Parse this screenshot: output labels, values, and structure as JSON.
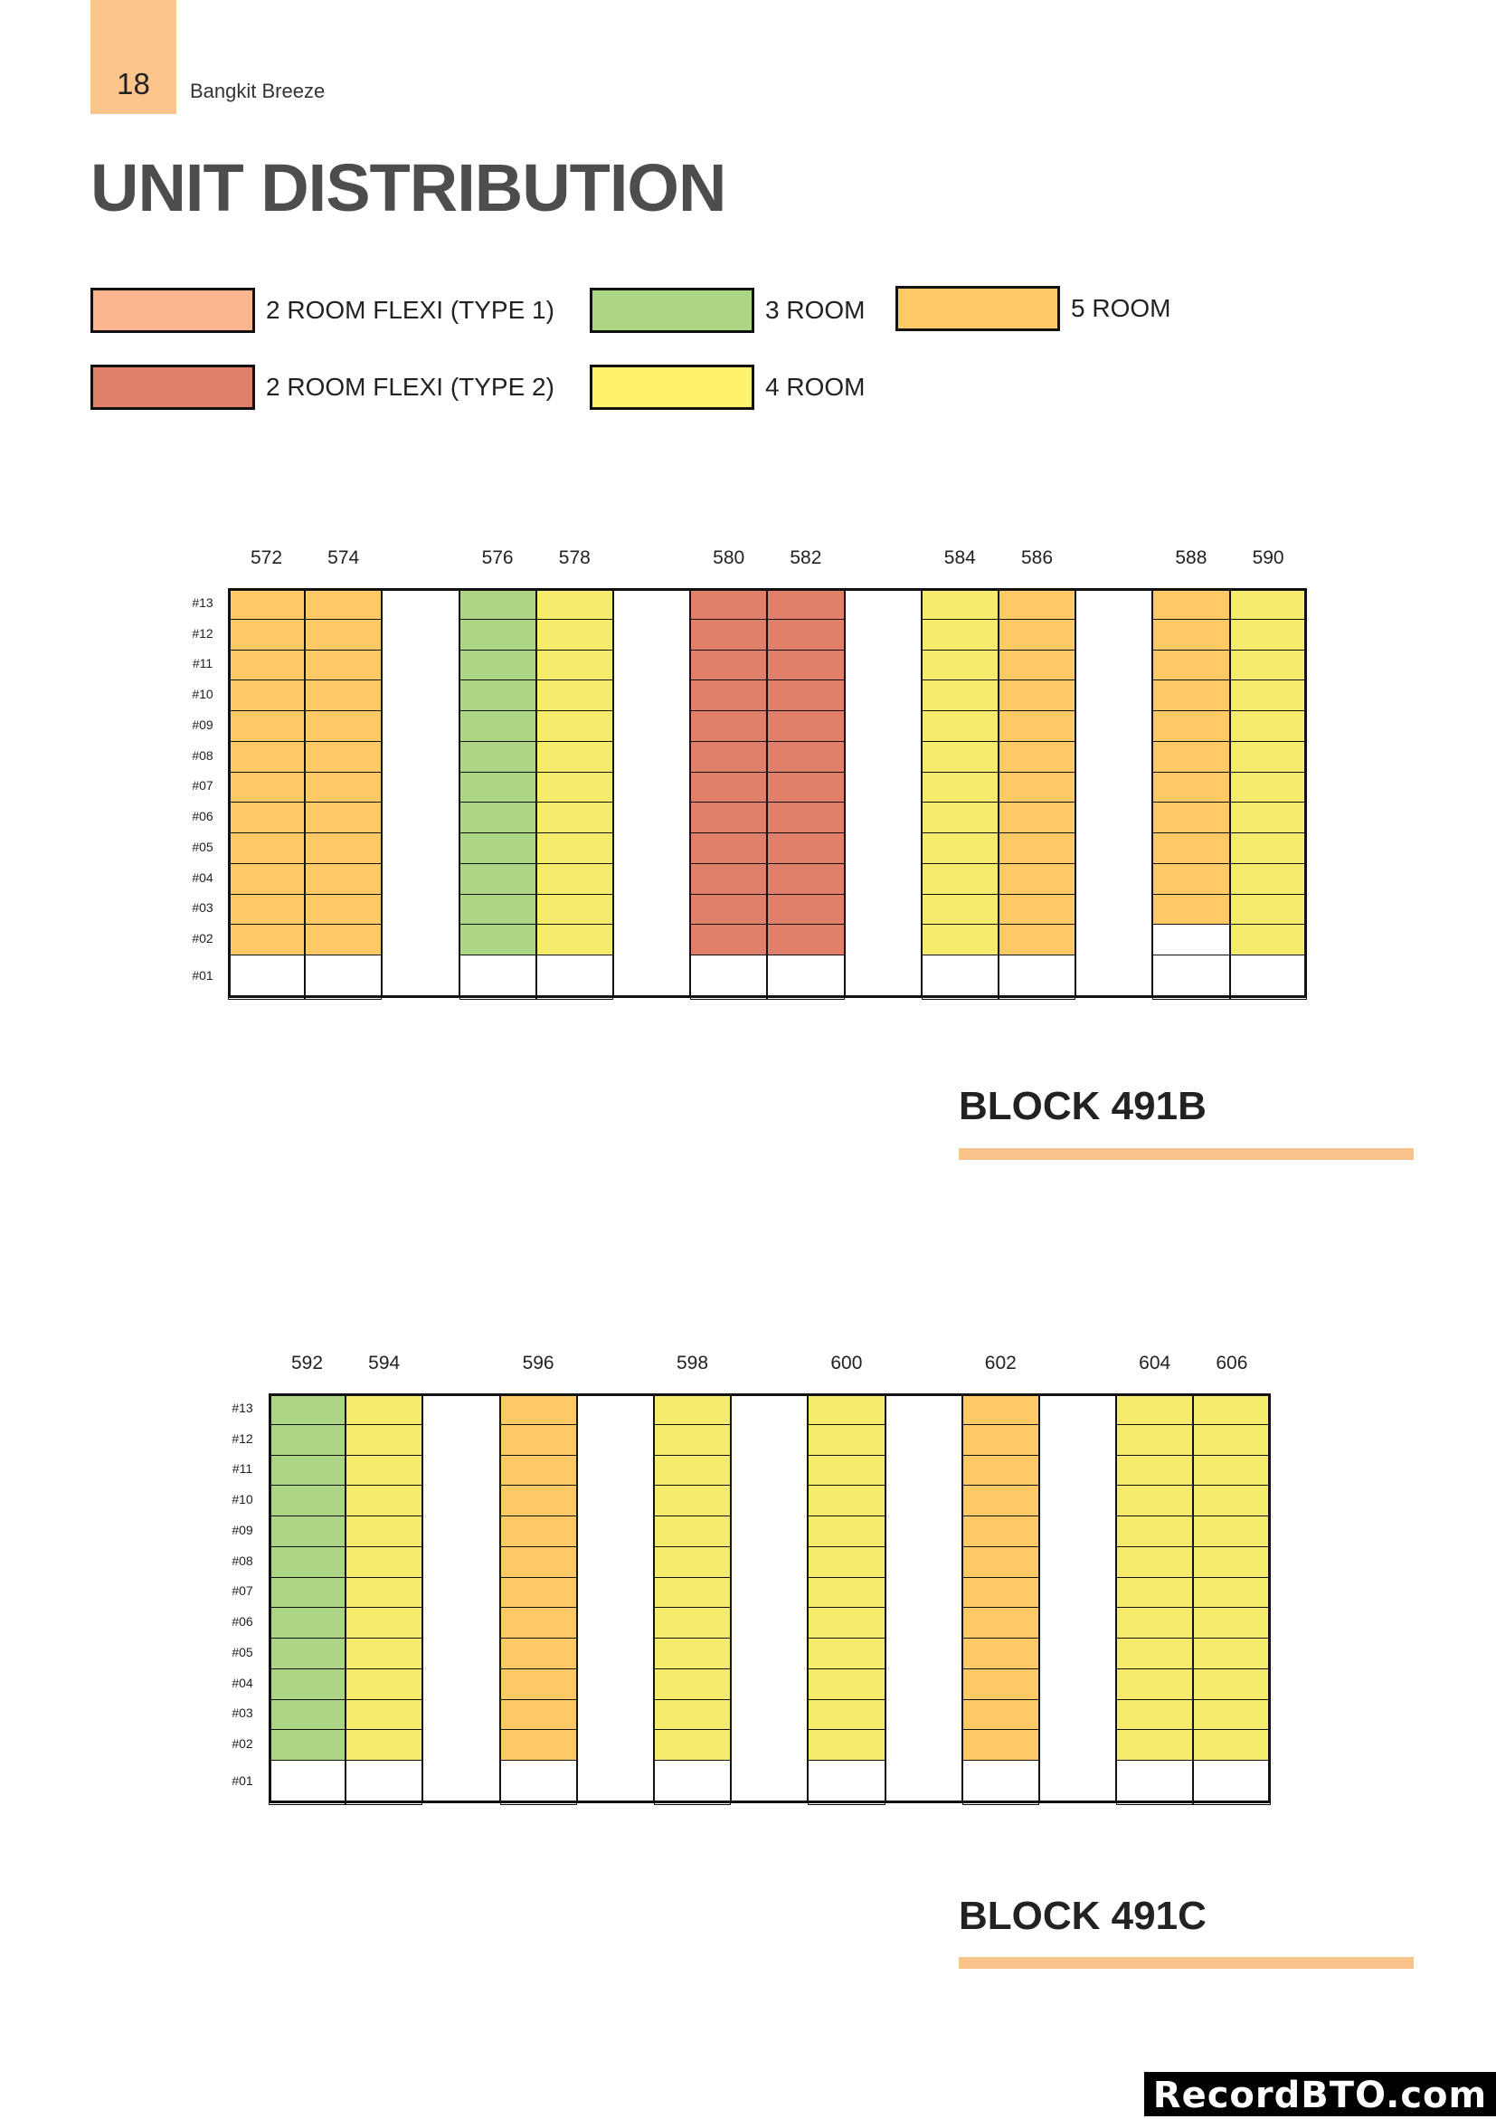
{
  "header": {
    "page_number": "18",
    "document_name": "Bangkit Breeze",
    "tab_color": "#FBC58C"
  },
  "title": "UNIT DISTRIBUTION",
  "legend": [
    {
      "key": "flexi1",
      "label": "2 ROOM FLEXI (TYPE 1)",
      "color": "#FBB690"
    },
    {
      "key": "3room",
      "label": "3 ROOM",
      "color": "#ACD584"
    },
    {
      "key": "5room",
      "label": "5 ROOM",
      "color": "#FFC966"
    },
    {
      "key": "flexi2",
      "label": "2 ROOM FLEXI (TYPE 2)",
      "color": "#E07F6A"
    },
    {
      "key": "4room",
      "label": "4 ROOM",
      "color": "#FFF36E"
    }
  ],
  "cell_colors": {
    "flexi1": "#FBB690",
    "flexi2": "#E07F6A",
    "3room": "#ACD584",
    "4room": "#F5EC6E",
    "5room": "#FFC966"
  },
  "floors": [
    "#13",
    "#12",
    "#11",
    "#10",
    "#09",
    "#08",
    "#07",
    "#06",
    "#05",
    "#04",
    "#03",
    "#02",
    "#01"
  ],
  "blocks": [
    {
      "name": "BLOCK 491B",
      "columns": [
        {
          "unit": "572",
          "type": "5room",
          "empty_floors": [
            "#01"
          ]
        },
        {
          "unit": "574",
          "type": "5room",
          "empty_floors": [
            "#01"
          ]
        },
        {
          "unit": null
        },
        {
          "unit": "576",
          "type": "3room",
          "empty_floors": [
            "#01"
          ]
        },
        {
          "unit": "578",
          "type": "4room",
          "empty_floors": [
            "#01"
          ]
        },
        {
          "unit": null
        },
        {
          "unit": "580",
          "type": "flexi2",
          "empty_floors": [
            "#01"
          ]
        },
        {
          "unit": "582",
          "type": "flexi2",
          "empty_floors": [
            "#01"
          ]
        },
        {
          "unit": null
        },
        {
          "unit": "584",
          "type": "4room",
          "empty_floors": [
            "#01"
          ]
        },
        {
          "unit": "586",
          "type": "5room",
          "empty_floors": [
            "#01"
          ]
        },
        {
          "unit": null
        },
        {
          "unit": "588",
          "type": "5room",
          "empty_floors": [
            "#02",
            "#01"
          ]
        },
        {
          "unit": "590",
          "type": "4room",
          "empty_floors": [
            "#01"
          ]
        }
      ]
    },
    {
      "name": "BLOCK 491C",
      "columns": [
        {
          "unit": "592",
          "type": "3room",
          "empty_floors": [
            "#01"
          ]
        },
        {
          "unit": "594",
          "type": "4room",
          "empty_floors": [
            "#01"
          ]
        },
        {
          "unit": null
        },
        {
          "unit": "596",
          "type": "5room",
          "empty_floors": [
            "#01"
          ]
        },
        {
          "unit": null
        },
        {
          "unit": "598",
          "type": "4room",
          "empty_floors": [
            "#01"
          ]
        },
        {
          "unit": null
        },
        {
          "unit": "600",
          "type": "4room",
          "empty_floors": [
            "#01"
          ]
        },
        {
          "unit": null
        },
        {
          "unit": "602",
          "type": "5room",
          "empty_floors": [
            "#01"
          ]
        },
        {
          "unit": null
        },
        {
          "unit": "604",
          "type": "4room",
          "empty_floors": [
            "#01"
          ]
        },
        {
          "unit": "606",
          "type": "4room",
          "empty_floors": [
            "#01"
          ]
        }
      ]
    }
  ],
  "watermark": "RecordBTO.com"
}
